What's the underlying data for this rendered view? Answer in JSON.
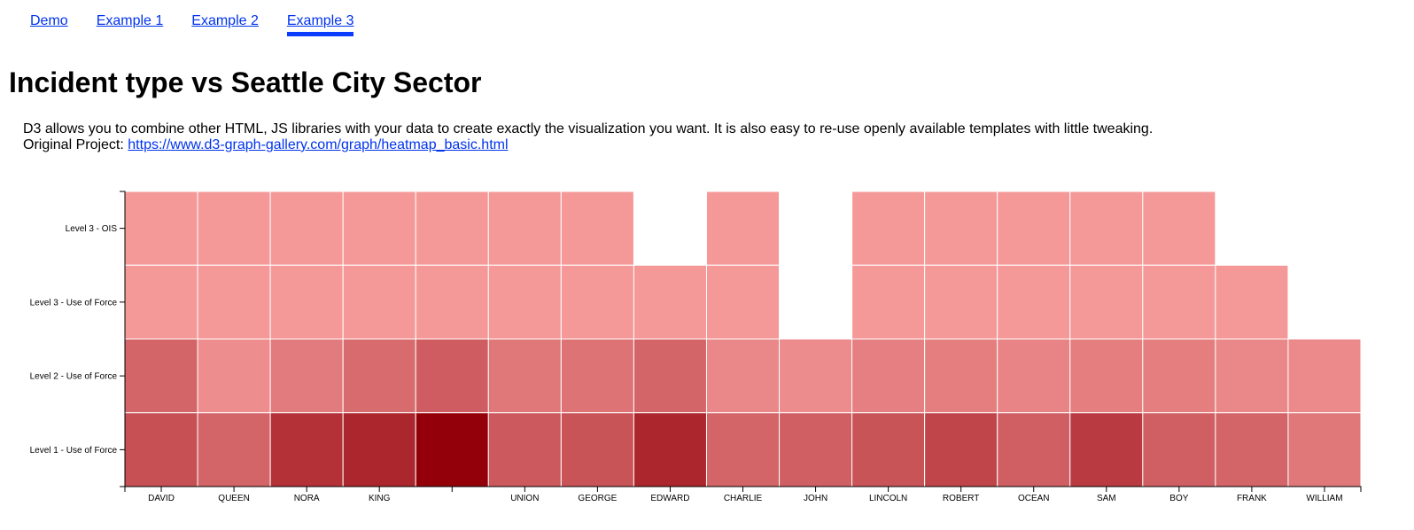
{
  "nav": {
    "items": [
      {
        "label": "Demo",
        "active": false
      },
      {
        "label": "Example 1",
        "active": false
      },
      {
        "label": "Example 2",
        "active": false
      },
      {
        "label": "Example 3",
        "active": true
      }
    ]
  },
  "page": {
    "title": "Incident type vs Seattle City Sector",
    "description": "D3 allows you to combine other HTML, JS libraries with your data to create exactly the visualization you want. It is also easy to re-use openly available templates with little tweaking.",
    "original_label": "Original Project:",
    "original_link": "https://www.d3-graph-gallery.com/graph/heatmap_basic.html"
  },
  "colors": {
    "low": "#f59898",
    "high": "#930009",
    "cell_border": "#ffffff",
    "link": "#0033ee"
  },
  "chart_data": {
    "type": "heatmap",
    "x_categories": [
      "DAVID",
      "QUEEN",
      "NORA",
      "KING",
      "",
      "UNION",
      "GEORGE",
      "EDWARD",
      "CHARLIE",
      "JOHN",
      "LINCOLN",
      "ROBERT",
      "OCEAN",
      "SAM",
      "BOY",
      "FRANK",
      "WILLIAM"
    ],
    "y_categories": [
      "Level 3 - OIS",
      "Level 3 - Use of Force",
      "Level 2 - Use of Force",
      "Level 1 - Use of Force"
    ],
    "values": [
      [
        1,
        1,
        1,
        1,
        1,
        1,
        1,
        null,
        1,
        null,
        1,
        1,
        1,
        1,
        1,
        null,
        null
      ],
      [
        1,
        1,
        1,
        1,
        1,
        1,
        1,
        1,
        1,
        null,
        1,
        1,
        1,
        1,
        1,
        1,
        null
      ],
      [
        35,
        8,
        20,
        30,
        40,
        22,
        25,
        35,
        12,
        9,
        17,
        18,
        14,
        18,
        18,
        12,
        10
      ],
      [
        48,
        35,
        68,
        75,
        100,
        42,
        45,
        75,
        35,
        38,
        45,
        55,
        38,
        62,
        38,
        35,
        22
      ]
    ],
    "value_range": [
      1,
      100
    ],
    "xlabel": "",
    "ylabel": "",
    "grid": false
  }
}
